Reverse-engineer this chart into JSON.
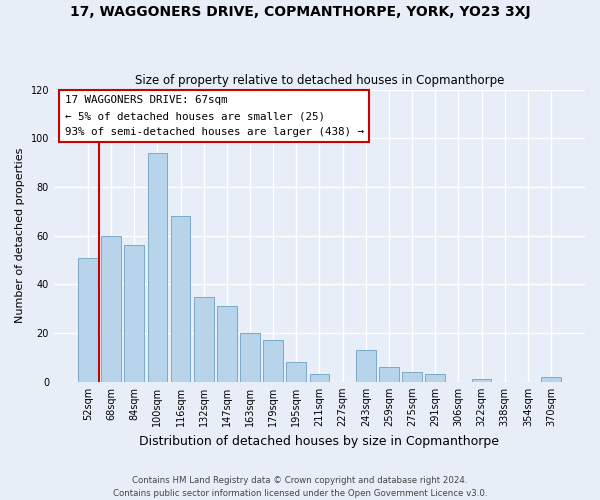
{
  "title": "17, WAGGONERS DRIVE, COPMANTHORPE, YORK, YO23 3XJ",
  "subtitle": "Size of property relative to detached houses in Copmanthorpe",
  "xlabel": "Distribution of detached houses by size in Copmanthorpe",
  "ylabel": "Number of detached properties",
  "categories": [
    "52sqm",
    "68sqm",
    "84sqm",
    "100sqm",
    "116sqm",
    "132sqm",
    "147sqm",
    "163sqm",
    "179sqm",
    "195sqm",
    "211sqm",
    "227sqm",
    "243sqm",
    "259sqm",
    "275sqm",
    "291sqm",
    "306sqm",
    "322sqm",
    "338sqm",
    "354sqm",
    "370sqm"
  ],
  "values": [
    51,
    60,
    56,
    94,
    68,
    35,
    31,
    20,
    17,
    8,
    3,
    0,
    13,
    6,
    4,
    3,
    0,
    1,
    0,
    0,
    2
  ],
  "bar_color": "#b8d4ea",
  "bar_edge_color": "#7aaac8",
  "vline_color": "#cc0000",
  "ylim": [
    0,
    120
  ],
  "yticks": [
    0,
    20,
    40,
    60,
    80,
    100,
    120
  ],
  "annotation_title": "17 WAGGONERS DRIVE: 67sqm",
  "annotation_line1": "← 5% of detached houses are smaller (25)",
  "annotation_line2": "93% of semi-detached houses are larger (438) →",
  "annotation_box_color": "#ffffff",
  "annotation_box_edge": "#cc0000",
  "footer1": "Contains HM Land Registry data © Crown copyright and database right 2024.",
  "footer2": "Contains public sector information licensed under the Open Government Licence v3.0.",
  "background_color": "#e8eef8",
  "plot_background": "#e8eef8"
}
